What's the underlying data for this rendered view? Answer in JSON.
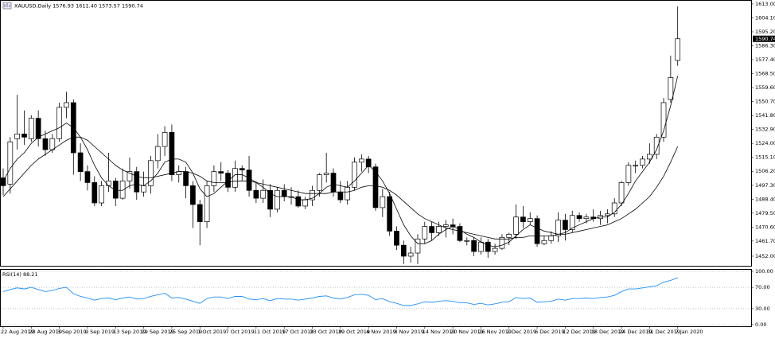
{
  "chart_data": [
    {
      "type": "candlestick",
      "title": "XAUUSD,Daily  1576.93 1611.40 1573.57 1590.74",
      "up_color": "#ffffff",
      "down_color": "#000000",
      "categories": [
        "22 Aug 2019",
        null,
        null,
        null,
        "28 Aug 2019",
        null,
        null,
        null,
        "3 Sep 2019",
        null,
        null,
        null,
        "9 Sep 2019",
        null,
        null,
        null,
        "13 Sep 2019",
        null,
        null,
        null,
        "19 Sep 2019",
        null,
        null,
        null,
        "25 Sep 2019",
        null,
        null,
        null,
        "1 Oct 2019",
        null,
        null,
        null,
        "7 Oct 2019",
        null,
        null,
        null,
        "11 Oct 2019",
        null,
        null,
        null,
        "17 Oct 2019",
        null,
        null,
        null,
        "23 Oct 2019",
        null,
        null,
        null,
        "29 Oct 2019",
        null,
        null,
        null,
        "4 Nov 2019",
        null,
        null,
        null,
        "8 Nov 2019",
        null,
        null,
        null,
        "14 Nov 2019",
        null,
        null,
        null,
        "20 Nov 2019",
        null,
        null,
        null,
        "26 Nov 2019",
        null,
        null,
        null,
        "2 Dec 2019",
        null,
        null,
        null,
        "6 Dec 2019",
        null,
        null,
        null,
        "12 Dec 2019",
        null,
        null,
        null,
        "18 Dec 2019",
        null,
        null,
        null,
        "24 Dec 2019",
        null,
        null,
        null,
        "31 Dec 2019",
        null,
        null,
        null,
        "7 Jan 2020"
      ],
      "open": [
        1502,
        1498,
        1527,
        1530,
        1527,
        1540,
        1527,
        1520,
        1527,
        1547,
        1550,
        1518,
        1506,
        1499,
        1486,
        1497,
        1500,
        1489,
        1500,
        1506,
        1493,
        1497,
        1513,
        1522,
        1531,
        1504,
        1506,
        1497,
        1485,
        1474,
        1497,
        1506,
        1505,
        1496,
        1508,
        1507,
        1494,
        1489,
        1494,
        1482,
        1494,
        1490,
        1490,
        1484,
        1488,
        1494,
        1504,
        1505,
        1493,
        1488,
        1496,
        1512,
        1514,
        1509,
        1483,
        1490,
        1468,
        1459,
        1452,
        1454,
        1463,
        1471,
        1467,
        1471,
        1472,
        1471,
        1462,
        1462,
        1455,
        1461,
        1455,
        1457,
        1464,
        1466,
        1477,
        1474,
        1476,
        1460,
        1462,
        1465,
        1475,
        1469,
        1478,
        1476,
        1477,
        1476,
        1478,
        1479,
        1486,
        1499,
        1510,
        1510,
        1514,
        1517,
        1528,
        1552,
        1576.93
      ],
      "high": [
        1508,
        1528,
        1555,
        1545,
        1542,
        1545,
        1532,
        1530,
        1550,
        1557,
        1552,
        1524,
        1510,
        1503,
        1500,
        1518,
        1502,
        1508,
        1515,
        1509,
        1506,
        1516,
        1530,
        1535,
        1536,
        1510,
        1509,
        1500,
        1488,
        1500,
        1510,
        1512,
        1507,
        1513,
        1510,
        1516,
        1500,
        1501,
        1498,
        1496,
        1498,
        1496,
        1494,
        1490,
        1497,
        1505,
        1518,
        1508,
        1500,
        1500,
        1515,
        1517,
        1516,
        1511,
        1495,
        1493,
        1471,
        1462,
        1458,
        1466,
        1474,
        1474,
        1474,
        1475,
        1476,
        1473,
        1464,
        1464,
        1464,
        1463,
        1460,
        1466,
        1467,
        1485,
        1484,
        1480,
        1478,
        1465,
        1468,
        1480,
        1479,
        1481,
        1480,
        1479,
        1482,
        1481,
        1482,
        1489,
        1500,
        1512,
        1513,
        1516,
        1524,
        1530,
        1553,
        1580,
        1611.4
      ],
      "low": [
        1491,
        1492,
        1520,
        1523,
        1525,
        1522,
        1516,
        1518,
        1525,
        1540,
        1504,
        1500,
        1494,
        1484,
        1484,
        1493,
        1484,
        1488,
        1495,
        1488,
        1490,
        1492,
        1508,
        1516,
        1500,
        1499,
        1489,
        1470,
        1459,
        1470,
        1493,
        1500,
        1493,
        1493,
        1500,
        1490,
        1486,
        1486,
        1477,
        1480,
        1487,
        1485,
        1483,
        1482,
        1484,
        1490,
        1499,
        1490,
        1486,
        1485,
        1494,
        1506,
        1505,
        1481,
        1477,
        1465,
        1456,
        1447,
        1448,
        1447,
        1460,
        1462,
        1465,
        1464,
        1466,
        1461,
        1459,
        1452,
        1453,
        1451,
        1453,
        1456,
        1459,
        1463,
        1470,
        1472,
        1458,
        1459,
        1460,
        1461,
        1462,
        1467,
        1474,
        1473,
        1474,
        1472,
        1473,
        1477,
        1484,
        1497,
        1505,
        1508,
        1511,
        1514,
        1525,
        1550,
        1573.57
      ],
      "close": [
        1497,
        1525,
        1530,
        1528,
        1540,
        1527,
        1520,
        1527,
        1547,
        1550,
        1518,
        1506,
        1499,
        1486,
        1497,
        1500,
        1489,
        1500,
        1506,
        1493,
        1497,
        1513,
        1522,
        1531,
        1504,
        1506,
        1497,
        1485,
        1474,
        1497,
        1506,
        1505,
        1496,
        1508,
        1507,
        1494,
        1489,
        1494,
        1482,
        1494,
        1490,
        1490,
        1484,
        1488,
        1494,
        1504,
        1505,
        1493,
        1488,
        1496,
        1512,
        1514,
        1509,
        1483,
        1490,
        1468,
        1459,
        1452,
        1454,
        1463,
        1471,
        1467,
        1471,
        1472,
        1471,
        1462,
        1462,
        1455,
        1461,
        1455,
        1457,
        1464,
        1466,
        1477,
        1474,
        1476,
        1460,
        1462,
        1465,
        1475,
        1469,
        1478,
        1476,
        1477,
        1476,
        1478,
        1479,
        1486,
        1499,
        1510,
        1510,
        1514,
        1517,
        1528,
        1550,
        1566,
        1590.74
      ],
      "lines": [
        {
          "color": "#000000",
          "values": [
            1500,
            1508,
            1514,
            1518,
            1524,
            1528,
            1530,
            1532,
            1534,
            1537,
            1534,
            1528,
            1520,
            1510,
            1502,
            1497,
            1494,
            1494,
            1497,
            1498,
            1497,
            1500,
            1505,
            1512,
            1514,
            1514,
            1512,
            1505,
            1495,
            1490,
            1492,
            1496,
            1500,
            1504,
            1504,
            1502,
            1499,
            1496,
            1492,
            1490,
            1490,
            1490,
            1488,
            1488,
            1489,
            1492,
            1496,
            1498,
            1497,
            1496,
            1500,
            1505,
            1510,
            1506,
            1500,
            1492,
            1482,
            1472,
            1465,
            1460,
            1460,
            1462,
            1466,
            1469,
            1471,
            1469,
            1466,
            1464,
            1461,
            1459,
            1458,
            1459,
            1461,
            1465,
            1469,
            1472,
            1470,
            1468,
            1467,
            1466,
            1467,
            1470,
            1472,
            1474,
            1476,
            1477,
            1477,
            1480,
            1485,
            1492,
            1500,
            1506,
            1512,
            1520,
            1532,
            1548,
            1567
          ]
        },
        {
          "color": "#000000",
          "values": [
            1490,
            1495,
            1500,
            1505,
            1510,
            1514,
            1517,
            1520,
            1523,
            1526,
            1528,
            1528,
            1526,
            1522,
            1518,
            1514,
            1510,
            1507,
            1505,
            1503,
            1502,
            1502,
            1503,
            1504,
            1505,
            1506,
            1506,
            1505,
            1503,
            1500,
            1499,
            1499,
            1499,
            1500,
            1500,
            1500,
            1499,
            1498,
            1497,
            1496,
            1495,
            1494,
            1493,
            1492,
            1492,
            1492,
            1492,
            1493,
            1493,
            1493,
            1494,
            1496,
            1497,
            1497,
            1496,
            1494,
            1491,
            1487,
            1483,
            1479,
            1476,
            1474,
            1472,
            1470,
            1469,
            1468,
            1467,
            1466,
            1465,
            1464,
            1463,
            1463,
            1463,
            1464,
            1464,
            1465,
            1465,
            1465,
            1465,
            1466,
            1466,
            1467,
            1468,
            1469,
            1470,
            1471,
            1472,
            1474,
            1476,
            1479,
            1482,
            1486,
            1490,
            1496,
            1503,
            1512,
            1522
          ]
        }
      ],
      "ylim": [
        1446.9,
        1615.5
      ],
      "yticks": [
        {
          "value": 1613,
          "label": "1613.00"
        },
        {
          "value": 1604.1,
          "label": "1604.10"
        },
        {
          "value": 1595.2,
          "label": "1595.20"
        },
        {
          "value": 1586.3,
          "label": "1586.30"
        },
        {
          "value": 1577.4,
          "label": "1577.40"
        },
        {
          "value": 1568.5,
          "label": "1568.50"
        },
        {
          "value": 1559.6,
          "label": "1559.60"
        },
        {
          "value": 1550.7,
          "label": "1550.70"
        },
        {
          "value": 1541.8,
          "label": "1541.80"
        },
        {
          "value": 1532.9,
          "label": "1532.90"
        },
        {
          "value": 1524,
          "label": "1524.00"
        },
        {
          "value": 1515.1,
          "label": "1515.10"
        },
        {
          "value": 1506.2,
          "label": "1506.20"
        },
        {
          "value": 1497.3,
          "label": "1497.30"
        },
        {
          "value": 1488.4,
          "label": "1488.40"
        },
        {
          "value": 1479.5,
          "label": "1479.50"
        },
        {
          "value": 1470.6,
          "label": "1470.60"
        },
        {
          "value": 1461.7,
          "label": "1461.70"
        },
        {
          "value": 1452,
          "label": "1452.00"
        }
      ]
    },
    {
      "type": "line",
      "title": "RSI(14) 88.21",
      "color": "#1e90ff",
      "values": [
        62,
        66,
        69,
        67,
        70,
        66,
        62,
        64,
        68,
        70,
        58,
        53,
        50,
        46,
        49,
        50,
        47,
        50,
        52,
        48,
        49,
        53,
        56,
        59,
        50,
        51,
        48,
        44,
        40,
        49,
        52,
        52,
        49,
        53,
        53,
        48,
        47,
        49,
        45,
        49,
        48,
        48,
        46,
        48,
        50,
        53,
        54,
        50,
        48,
        51,
        56,
        57,
        55,
        47,
        49,
        43,
        40,
        36,
        36,
        39,
        43,
        42,
        44,
        45,
        44,
        41,
        41,
        38,
        40,
        37,
        39,
        42,
        43,
        51,
        49,
        50,
        42,
        43,
        44,
        48,
        46,
        49,
        49,
        50,
        49,
        51,
        52,
        55,
        62,
        67,
        67,
        69,
        71,
        73,
        80,
        83,
        88.21
      ],
      "ylim": [
        0,
        100
      ],
      "yticks": [
        {
          "value": 100,
          "label": "100.00"
        },
        {
          "value": 70,
          "label": "70.00"
        },
        {
          "value": 30,
          "label": "30.00"
        },
        {
          "value": 0,
          "label": "0.00"
        }
      ],
      "grid": "dotted"
    }
  ]
}
